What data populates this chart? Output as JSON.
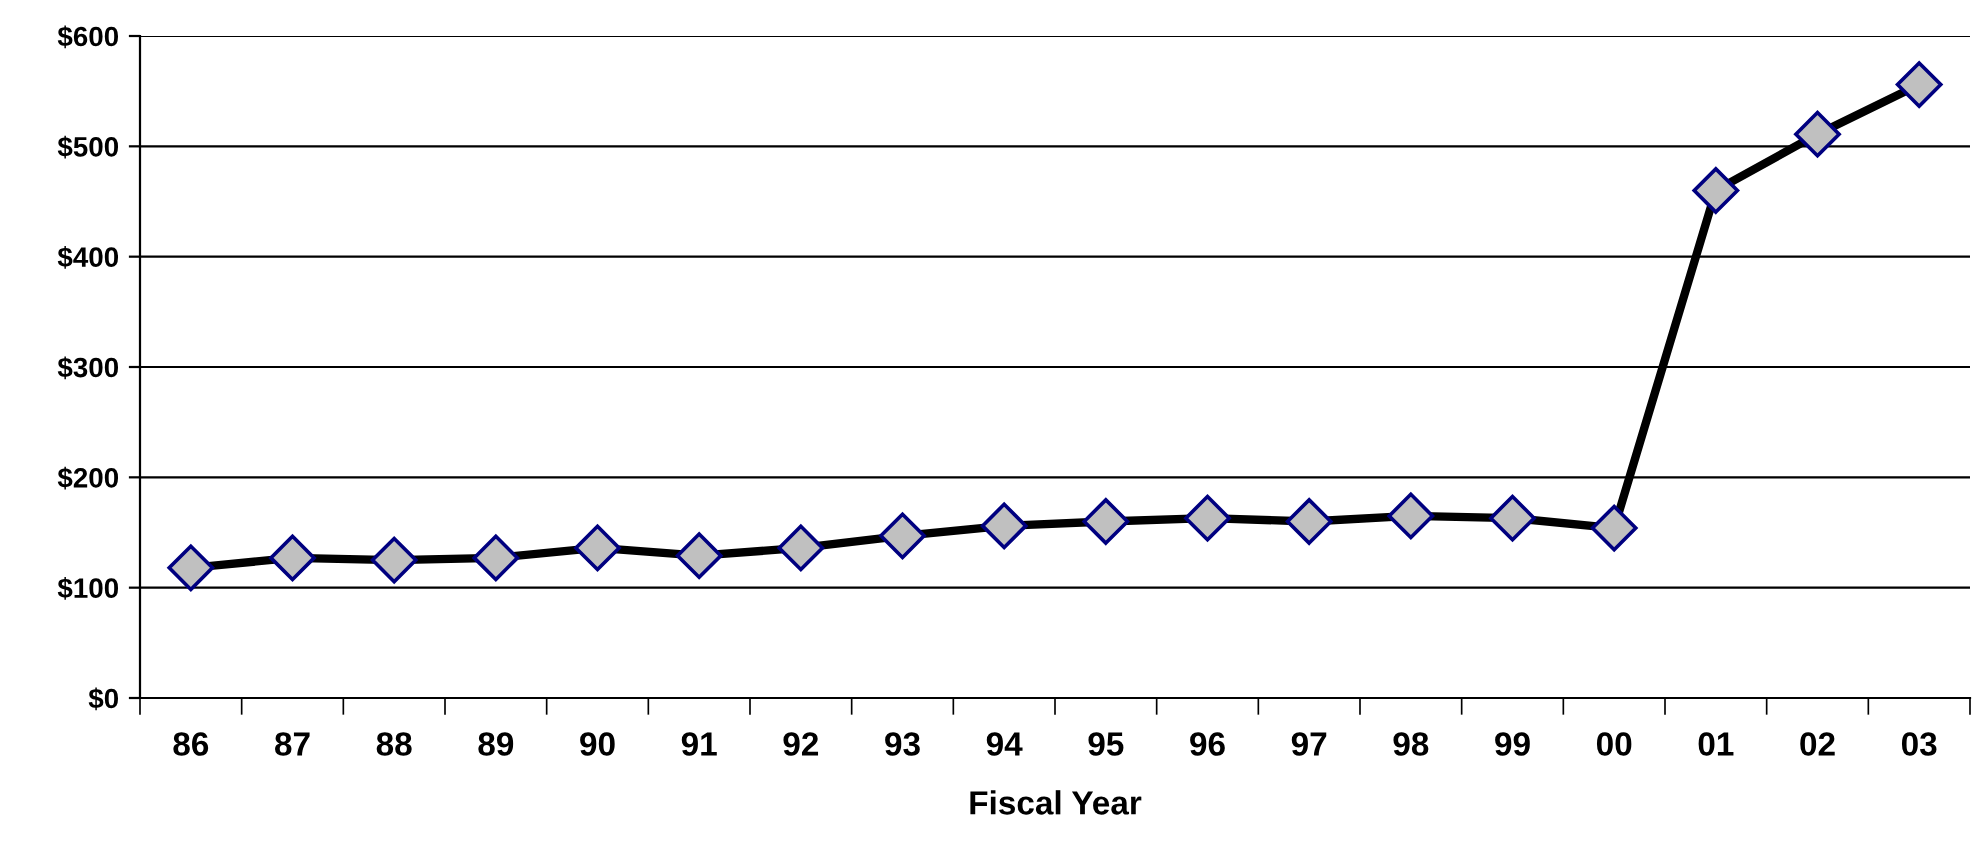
{
  "chart_data": {
    "type": "line",
    "xlabel": "Fiscal Year",
    "categories": [
      "86",
      "87",
      "88",
      "89",
      "90",
      "91",
      "92",
      "93",
      "94",
      "95",
      "96",
      "97",
      "98",
      "99",
      "00",
      "01",
      "02",
      "03"
    ],
    "series": [
      {
        "color": "#000000",
        "values": [
          118,
          127,
          125,
          127,
          136,
          129,
          136,
          147,
          156,
          160,
          163,
          160,
          165,
          163,
          154,
          460,
          511,
          556
        ]
      }
    ],
    "ylim": [
      0,
      600
    ],
    "yticks": [
      {
        "value": 0,
        "label": "$0"
      },
      {
        "value": 100,
        "label": "$100"
      },
      {
        "value": 200,
        "label": "$200"
      },
      {
        "value": 300,
        "label": "$300"
      },
      {
        "value": 400,
        "label": "$400"
      },
      {
        "value": 500,
        "label": "$500"
      },
      {
        "value": 600,
        "label": "$600"
      }
    ],
    "grid": "y",
    "legend": false,
    "marker": "diamond",
    "line_style": "solid"
  }
}
